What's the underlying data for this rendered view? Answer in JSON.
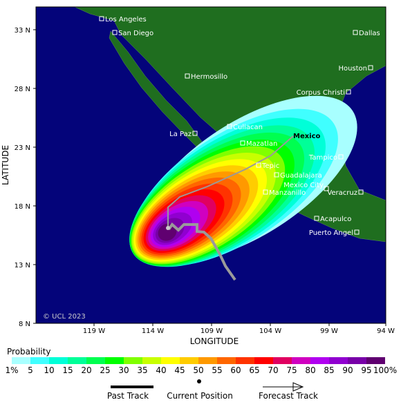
{
  "map": {
    "xlabel": "LONGITUDE",
    "ylabel": "LATITUDE",
    "xticks": [
      "119 W",
      "114 W",
      "109 W",
      "104 W",
      "99 W",
      "94 W"
    ],
    "yticks": [
      "8 N",
      "13 N",
      "18 N",
      "23 N",
      "28 N",
      "33 N"
    ],
    "cities": [
      "Los Angeles",
      "San Diego",
      "Dallas",
      "Hermosillo",
      "Houston",
      "Corpus Christi",
      "Culiacan",
      "La Paz",
      "Mazatlan",
      "Tampico",
      "Tepic",
      "Guadalajara",
      "Mexico City",
      "Veracruz",
      "Manzanillo",
      "Acapulco",
      "Puerto Angel"
    ],
    "region_label": "Mexico",
    "copyright": "© UCL 2023"
  },
  "legend": {
    "title": "Probability",
    "labels": [
      "1%",
      "5",
      "10",
      "15",
      "20",
      "25",
      "30",
      "35",
      "40",
      "45",
      "50",
      "55",
      "60",
      "65",
      "70",
      "75",
      "80",
      "85",
      "90",
      "95",
      "100%"
    ],
    "colors": [
      "#a8ffff",
      "#40ffff",
      "#00ffd8",
      "#00ff98",
      "#00ff50",
      "#00ff00",
      "#80ff00",
      "#c8ff00",
      "#ffff00",
      "#ffcc00",
      "#ff9900",
      "#ff6600",
      "#ff3300",
      "#ff0000",
      "#e00060",
      "#d000c0",
      "#b000f0",
      "#9000d0",
      "#7800a8",
      "#600070"
    ],
    "past_track": "Past Track",
    "current_position": "Current Position",
    "forecast_track": "Forecast Track"
  }
}
